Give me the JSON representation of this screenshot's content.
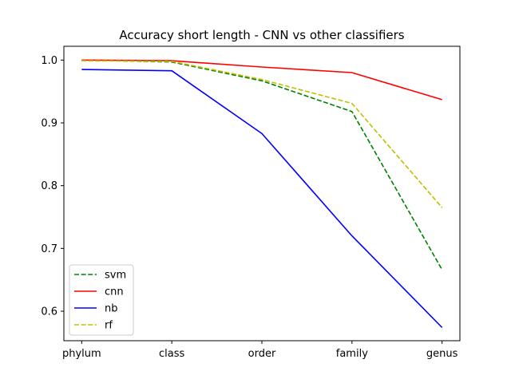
{
  "chart_data": {
    "type": "line",
    "title": "Accuracy short length - CNN vs other classifiers",
    "xlabel": "",
    "ylabel": "",
    "categories": [
      "phylum",
      "class",
      "order",
      "family",
      "genus"
    ],
    "ylim": [
      0.553,
      1.022
    ],
    "yticks": [
      0.6,
      0.7,
      0.8,
      0.9,
      1.0
    ],
    "ytick_labels": [
      "0.6",
      "0.7",
      "0.8",
      "0.9",
      "1.0"
    ],
    "grid": false,
    "legend_position": "lower-left",
    "series": [
      {
        "name": "svm",
        "color": "#008000",
        "dashed": true,
        "values": [
          1.0,
          0.997,
          0.967,
          0.918,
          0.666
        ]
      },
      {
        "name": "cnn",
        "color": "#ff0000",
        "dashed": false,
        "values": [
          1.0,
          0.999,
          0.989,
          0.98,
          0.937
        ]
      },
      {
        "name": "nb",
        "color": "#0000ff",
        "dashed": false,
        "values": [
          0.985,
          0.983,
          0.883,
          0.72,
          0.574
        ]
      },
      {
        "name": "rf",
        "color": "#bfbf00",
        "dashed": true,
        "values": [
          0.999,
          0.998,
          0.969,
          0.931,
          0.765
        ]
      }
    ]
  }
}
